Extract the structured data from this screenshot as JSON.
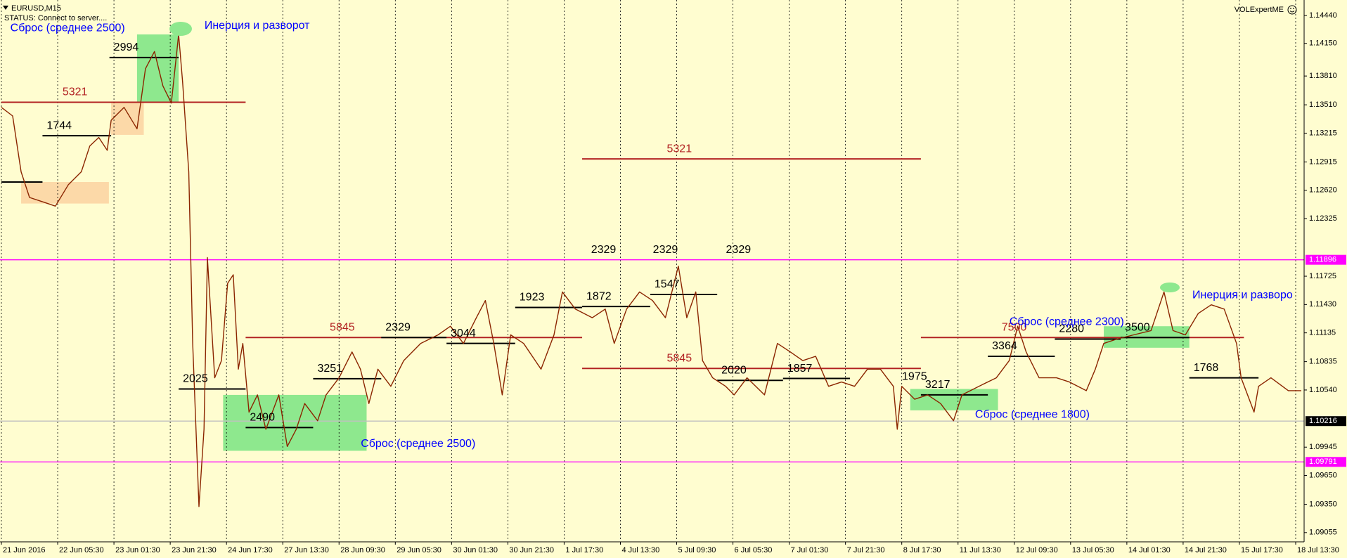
{
  "chart_data": {
    "type": "line",
    "title": "EURUSD,M15",
    "status": "STATUS: Connect to server....",
    "watermark": "VOLExpertME",
    "xlim": [
      0,
      23.15
    ],
    "xticks": [
      {
        "value": 0,
        "label": "21 Jun 2016"
      },
      {
        "value": 1,
        "label": "22 Jun 05:30"
      },
      {
        "value": 2,
        "label": "23 Jun 01:30"
      },
      {
        "value": 3,
        "label": "23 Jun 21:30"
      },
      {
        "value": 4,
        "label": "24 Jun 17:30"
      },
      {
        "value": 5,
        "label": "27 Jun 13:30"
      },
      {
        "value": 6,
        "label": "28 Jun 09:30"
      },
      {
        "value": 7,
        "label": "29 Jun 05:30"
      },
      {
        "value": 8,
        "label": "30 Jun 01:30"
      },
      {
        "value": 9,
        "label": "30 Jun 21:30"
      },
      {
        "value": 10,
        "label": "1 Jul 17:30"
      },
      {
        "value": 11,
        "label": "4 Jul 13:30"
      },
      {
        "value": 12,
        "label": "5 Jul 09:30"
      },
      {
        "value": 13,
        "label": "6 Jul 05:30"
      },
      {
        "value": 14,
        "label": "7 Jul 01:30"
      },
      {
        "value": 15,
        "label": "7 Jul 21:30"
      },
      {
        "value": 16,
        "label": "8 Jul 17:30"
      },
      {
        "value": 17,
        "label": "11 Jul 13:30"
      },
      {
        "value": 18,
        "label": "12 Jul 09:30"
      },
      {
        "value": 19,
        "label": "13 Jul 05:30"
      },
      {
        "value": 20,
        "label": "14 Jul 01:30"
      },
      {
        "value": 21,
        "label": "14 Jul 21:30"
      },
      {
        "value": 22,
        "label": "15 Jul 17:30"
      },
      {
        "value": 23,
        "label": "18 Jul 13:30"
      }
    ],
    "ylim": [
      1.08966,
      1.14565
    ],
    "yticks": [
      {
        "value": 1.1444,
        "label": "1.14440"
      },
      {
        "value": 1.1415,
        "label": "1.14150"
      },
      {
        "value": 1.1381,
        "label": "1.13810"
      },
      {
        "value": 1.1351,
        "label": "1.13510"
      },
      1.13215,
      1.12915,
      {
        "value": 1.1262,
        "label": "1.12620"
      },
      1.12325,
      1.11725,
      {
        "value": 1.1143,
        "label": "1.11430"
      },
      1.11135,
      1.10835,
      {
        "value": 1.1054,
        "label": "1.10540"
      },
      1.09945,
      {
        "value": 1.0965,
        "label": "1.09650"
      },
      {
        "value": 1.0935,
        "label": "1.09350"
      },
      1.09055
    ],
    "grid": true,
    "series": [
      {
        "name": "EURUSD",
        "color": "#8b2500",
        "x": [
          0,
          0.2,
          0.35,
          0.5,
          0.73,
          0.96,
          1.19,
          1.42,
          1.57,
          1.73,
          1.88,
          1.95,
          2.18,
          2.41,
          2.56,
          2.72,
          2.87,
          3.02,
          3.15,
          3.22,
          3.33,
          3.4,
          3.51,
          3.6,
          3.66,
          3.79,
          3.91,
          4.02,
          4.12,
          4.21,
          4.29,
          4.4,
          4.55,
          4.7,
          4.93,
          5.08,
          5.24,
          5.39,
          5.62,
          5.77,
          6.0,
          6.23,
          6.38,
          6.53,
          6.69,
          6.92,
          7.15,
          7.45,
          7.76,
          7.98,
          8.21,
          8.44,
          8.6,
          8.75,
          8.9,
          9.05,
          9.28,
          9.59,
          9.82,
          9.97,
          10.2,
          10.5,
          10.73,
          10.89,
          11.11,
          11.34,
          11.57,
          11.8,
          12.03,
          12.18,
          12.34,
          12.46,
          12.64,
          12.87,
          13.02,
          13.25,
          13.56,
          13.79,
          14.02,
          14.24,
          14.47,
          14.7,
          14.93,
          15.16,
          15.39,
          15.62,
          15.85,
          15.92,
          16.0,
          16.23,
          16.46,
          16.69,
          16.92,
          17.07,
          17.37,
          17.68,
          17.91,
          18.06,
          18.21,
          18.44,
          18.75,
          18.98,
          19.28,
          19.44,
          19.59,
          19.82,
          20.12,
          20.43,
          20.66,
          20.82,
          21.04,
          21.27,
          21.5,
          21.73,
          21.95,
          22.03,
          22.26,
          22.34,
          22.56,
          22.87,
          23.1
        ],
        "values": [
          1.13483,
          1.13394,
          1.12813,
          1.12545,
          1.125,
          1.12455,
          1.12679,
          1.12813,
          1.13081,
          1.1317,
          1.13036,
          1.13349,
          1.13483,
          1.1326,
          1.13886,
          1.14065,
          1.13707,
          1.13528,
          1.14243,
          1.13752,
          1.12813,
          1.11025,
          1.09326,
          1.10131,
          1.11919,
          1.10667,
          1.10846,
          1.11651,
          1.1174,
          1.10757,
          1.11025,
          1.1031,
          1.10489,
          1.10131,
          1.10489,
          1.09952,
          1.10131,
          1.10399,
          1.1022,
          1.10489,
          1.10667,
          1.10936,
          1.10757,
          1.10399,
          1.10757,
          1.10578,
          1.10846,
          1.11025,
          1.11114,
          1.11204,
          1.11025,
          1.11293,
          1.11472,
          1.11025,
          1.10489,
          1.11114,
          1.11025,
          1.10757,
          1.11114,
          1.11561,
          1.11383,
          1.11293,
          1.11383,
          1.11025,
          1.11383,
          1.11561,
          1.11472,
          1.11293,
          1.1183,
          1.11293,
          1.11561,
          1.10846,
          1.10667,
          1.10578,
          1.10489,
          1.10667,
          1.10489,
          1.11025,
          1.10936,
          1.10846,
          1.10891,
          1.10578,
          1.10623,
          1.10578,
          1.10757,
          1.10757,
          1.10578,
          1.10131,
          1.10578,
          1.10444,
          1.10489,
          1.10399,
          1.1022,
          1.10489,
          1.10578,
          1.10667,
          1.10846,
          1.11204,
          1.10936,
          1.10667,
          1.10667,
          1.10623,
          1.10533,
          1.10757,
          1.11025,
          1.1107,
          1.11114,
          1.11159,
          1.11561,
          1.11159,
          1.11114,
          1.11338,
          1.11427,
          1.11383,
          1.11025,
          1.10667,
          1.1031,
          1.10578,
          1.10667,
          1.10533,
          1.10533
        ]
      }
    ],
    "price_lines": [
      {
        "value": 1.11896,
        "color": "#ff00ff",
        "line_color": "#ff00ff"
      },
      {
        "value": 1.10216,
        "color": "#000000",
        "line_color": "#c0c0c0"
      },
      {
        "value": 1.09791,
        "color": "#ff00ff",
        "line_color": "#ff00ff"
      }
    ],
    "zones": [
      {
        "x": [
          0.35,
          1.91
        ],
        "y": [
          1.12482,
          1.12706
        ],
        "color": "#fcd9a8"
      },
      {
        "x": [
          1.95,
          2.53
        ],
        "y": [
          1.13197,
          1.13537
        ],
        "color": "#fcd9a8"
      },
      {
        "x": [
          2.41,
          3.15
        ],
        "y": [
          1.13537,
          1.14243
        ],
        "color": "#8ee88e"
      },
      {
        "x": [
          3.94,
          6.49
        ],
        "y": [
          1.09907,
          1.10489
        ],
        "color": "#8ee88e"
      },
      {
        "x": [
          16.15,
          17.71
        ],
        "y": [
          1.10328,
          1.10551
        ],
        "color": "#8ee88e"
      },
      {
        "x": [
          19.59,
          21.11
        ],
        "y": [
          1.1098,
          1.11204
        ],
        "color": "#8ee88e"
      }
    ],
    "levels": [
      {
        "label": "5321",
        "value": 1.13537,
        "x": [
          0,
          4.34
        ],
        "color": "#b22222"
      },
      {
        "label": "1744",
        "value": 1.13188,
        "x": [
          0.73,
          1.95
        ],
        "color": "#000000"
      },
      {
        "value": 1.12706,
        "x": [
          0,
          0.73
        ],
        "color": "#000000"
      },
      {
        "label": "2994",
        "value": 1.14002,
        "x": [
          1.92,
          3.15
        ],
        "color": "#000000"
      },
      {
        "label": "5321",
        "value": 1.12947,
        "x": [
          10.32,
          16.34
        ],
        "color": "#b22222"
      },
      {
        "label": "2025",
        "value": 1.10551,
        "x": [
          3.15,
          4.34
        ],
        "color": "#000000"
      },
      {
        "label": "2490",
        "value": 1.10149,
        "x": [
          4.34,
          5.54
        ],
        "color": "#000000"
      },
      {
        "label": "3251",
        "value": 1.10658,
        "x": [
          5.54,
          6.75
        ],
        "color": "#000000"
      },
      {
        "label": "5845",
        "value": 1.11087,
        "x": [
          4.34,
          10.32
        ],
        "color": "#b22222"
      },
      {
        "label": "2329",
        "value": 1.11087,
        "x": [
          6.75,
          7.91
        ],
        "color": "#000000"
      },
      {
        "label": "3044",
        "value": 1.11025,
        "x": [
          7.91,
          9.13
        ],
        "color": "#000000"
      },
      {
        "label": "1923",
        "value": 1.114,
        "x": [
          9.13,
          10.32
        ],
        "color": "#000000"
      },
      {
        "label": "1872",
        "value": 1.1141,
        "x": [
          10.32,
          11.53
        ],
        "color": "#000000"
      },
      {
        "label": "1547",
        "value": 1.11535,
        "x": [
          11.53,
          12.72
        ],
        "color": "#000000"
      },
      {
        "label": "5845",
        "value": 1.10765,
        "x": [
          10.32,
          16.34
        ],
        "color": "#b22222"
      },
      {
        "label": "2020",
        "value": 1.1064,
        "x": [
          12.72,
          13.89
        ],
        "color": "#000000"
      },
      {
        "label": "1857",
        "value": 1.1066,
        "x": [
          13.89,
          15.08
        ],
        "color": "#000000"
      },
      {
        "label": "3217",
        "value": 1.10489,
        "x": [
          16.34,
          17.53
        ],
        "color": "#000000"
      },
      {
        "label": "7500",
        "value": 1.11087,
        "x": [
          16.34,
          22.08
        ],
        "color": "#b22222"
      },
      {
        "label": "3364",
        "value": 1.10891,
        "x": [
          17.53,
          18.72
        ],
        "color": "#000000"
      },
      {
        "label": "2280",
        "value": 1.1107,
        "x": [
          18.72,
          19.89
        ],
        "color": "#000000"
      },
      {
        "label": "3500",
        "value": 1.11087,
        "x": [
          19.89,
          21.11
        ],
        "color": "#000000"
      },
      {
        "label": "1768",
        "value": 1.10667,
        "x": [
          21.11,
          22.34
        ],
        "color": "#000000"
      }
    ],
    "annotations": [
      {
        "text": "Сброс (среднее 2500)",
        "color": "#0000ff"
      },
      {
        "text": "Инерция и разворот",
        "color": "#0000ff"
      },
      {
        "text": "Сброс (среднее 2500)",
        "color": "#0000ff"
      },
      {
        "text": "Сброс (среднее 2300)",
        "color": "#0000ff"
      },
      {
        "text": "Инерция и разворо",
        "color": "#0000ff"
      },
      {
        "text": "Сброс (среднее 1800)",
        "color": "#0000ff"
      },
      {
        "text": "2329",
        "color": "#000000"
      },
      {
        "text": "2329",
        "color": "#000000"
      },
      {
        "text": "2329",
        "color": "#000000"
      },
      {
        "text": "1975",
        "color": "#000000"
      }
    ]
  }
}
